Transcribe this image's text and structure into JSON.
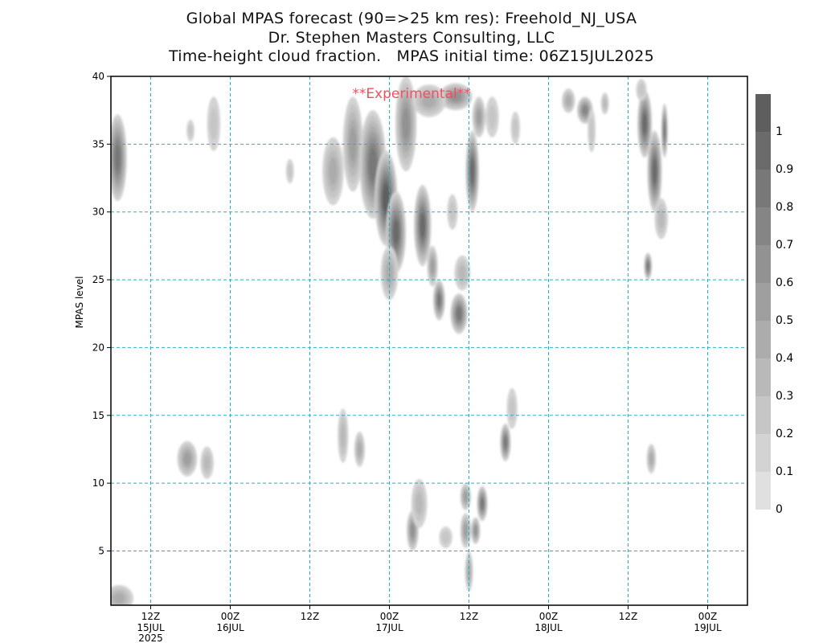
{
  "titles": [
    "Global MPAS forecast (90=>25 km res): Freehold_NJ_USA",
    "Dr. Stephen Masters Consulting, LLC",
    "Time-height cloud fraction.   MPAS initial time: 06Z15JUL2025"
  ],
  "annotation": "**Experimental**",
  "colors": {
    "grid": "#20b2c8",
    "annotation": "#f05060",
    "frame": "#000000"
  },
  "chart_data": {
    "type": "heatmap",
    "ylabel": "MPAS level",
    "ylim": [
      1,
      40
    ],
    "y_ticks": [
      5,
      10,
      15,
      20,
      25,
      30,
      35,
      40
    ],
    "xlim_hours_from_init": [
      0,
      96
    ],
    "x_ticks": [
      {
        "label": "12Z",
        "sub": [
          "15JUL",
          "2025"
        ]
      },
      {
        "label": "00Z",
        "sub": [
          "16JUL"
        ]
      },
      {
        "label": "12Z",
        "sub": []
      },
      {
        "label": "00Z",
        "sub": [
          "17JUL"
        ]
      },
      {
        "label": "12Z",
        "sub": []
      },
      {
        "label": "00Z",
        "sub": [
          "18JUL"
        ]
      },
      {
        "label": "12Z",
        "sub": []
      },
      {
        "label": "00Z",
        "sub": [
          "19JUL"
        ]
      }
    ],
    "x_tick_hours": [
      6,
      18,
      30,
      42,
      54,
      66,
      78,
      90
    ],
    "colorbar": {
      "labels": [
        "0",
        "0.1",
        "0.2",
        "0.3",
        "0.4",
        "0.5",
        "0.6",
        "0.7",
        "0.8",
        "0.9",
        "1"
      ],
      "colors": [
        "#e0e0e0",
        "#d3d3d3",
        "#c6c6c6",
        "#b9b9b9",
        "#acacac",
        "#9f9f9f",
        "#929292",
        "#858585",
        "#787878",
        "#6b6b6b",
        "#5e5e5e"
      ]
    },
    "cloud_blobs": [
      {
        "t": 1.0,
        "z": 34.0,
        "dt": 1.4,
        "dz": 3.2,
        "v": 0.75
      },
      {
        "t": 1.2,
        "z": 1.5,
        "dt": 2.2,
        "dz": 1.0,
        "v": 0.35
      },
      {
        "t": 12.0,
        "z": 36.0,
        "dt": 0.6,
        "dz": 0.8,
        "v": 0.15
      },
      {
        "t": 15.5,
        "z": 36.5,
        "dt": 1.0,
        "dz": 2.0,
        "v": 0.15
      },
      {
        "t": 11.5,
        "z": 11.8,
        "dt": 1.5,
        "dz": 1.3,
        "v": 0.5
      },
      {
        "t": 14.5,
        "z": 11.5,
        "dt": 1.0,
        "dz": 1.2,
        "v": 0.3
      },
      {
        "t": 27.0,
        "z": 33.0,
        "dt": 0.6,
        "dz": 0.9,
        "v": 0.15
      },
      {
        "t": 33.5,
        "z": 33.0,
        "dt": 1.6,
        "dz": 2.5,
        "v": 0.35
      },
      {
        "t": 36.5,
        "z": 35.0,
        "dt": 1.5,
        "dz": 3.5,
        "v": 0.5
      },
      {
        "t": 39.5,
        "z": 33.5,
        "dt": 2.0,
        "dz": 4.0,
        "v": 0.8
      },
      {
        "t": 41.5,
        "z": 31.0,
        "dt": 1.7,
        "dz": 3.5,
        "v": 0.95
      },
      {
        "t": 43.0,
        "z": 28.5,
        "dt": 1.5,
        "dz": 3.0,
        "v": 0.9
      },
      {
        "t": 42.0,
        "z": 25.5,
        "dt": 1.3,
        "dz": 2.0,
        "v": 0.4
      },
      {
        "t": 44.5,
        "z": 36.5,
        "dt": 1.6,
        "dz": 3.5,
        "v": 0.6
      },
      {
        "t": 47.0,
        "z": 29.0,
        "dt": 1.3,
        "dz": 3.0,
        "v": 0.85
      },
      {
        "t": 48.5,
        "z": 26.0,
        "dt": 0.8,
        "dz": 1.5,
        "v": 0.45
      },
      {
        "t": 49.5,
        "z": 23.5,
        "dt": 0.9,
        "dz": 1.5,
        "v": 0.75
      },
      {
        "t": 51.5,
        "z": 30.0,
        "dt": 0.8,
        "dz": 1.3,
        "v": 0.2
      },
      {
        "t": 52.5,
        "z": 22.5,
        "dt": 1.3,
        "dz": 1.5,
        "v": 0.8
      },
      {
        "t": 53.0,
        "z": 25.5,
        "dt": 1.2,
        "dz": 1.3,
        "v": 0.3
      },
      {
        "t": 52.0,
        "z": 38.5,
        "dt": 2.5,
        "dz": 1.0,
        "v": 0.55
      },
      {
        "t": 48.0,
        "z": 38.2,
        "dt": 2.5,
        "dz": 1.2,
        "v": 0.35
      },
      {
        "t": 54.5,
        "z": 33.0,
        "dt": 1.0,
        "dz": 3.0,
        "v": 0.85
      },
      {
        "t": 55.5,
        "z": 37.0,
        "dt": 1.0,
        "dz": 1.5,
        "v": 0.45
      },
      {
        "t": 57.5,
        "z": 37.0,
        "dt": 1.0,
        "dz": 1.5,
        "v": 0.2
      },
      {
        "t": 61.0,
        "z": 36.2,
        "dt": 0.7,
        "dz": 1.2,
        "v": 0.15
      },
      {
        "t": 35.0,
        "z": 13.5,
        "dt": 0.8,
        "dz": 2.0,
        "v": 0.25
      },
      {
        "t": 37.5,
        "z": 12.5,
        "dt": 0.8,
        "dz": 1.3,
        "v": 0.35
      },
      {
        "t": 45.5,
        "z": 6.5,
        "dt": 0.9,
        "dz": 1.5,
        "v": 0.55
      },
      {
        "t": 46.5,
        "z": 8.5,
        "dt": 1.2,
        "dz": 1.8,
        "v": 0.25
      },
      {
        "t": 50.5,
        "z": 6.0,
        "dt": 1.0,
        "dz": 0.8,
        "v": 0.2
      },
      {
        "t": 53.5,
        "z": 9.0,
        "dt": 0.8,
        "dz": 1.0,
        "v": 0.45
      },
      {
        "t": 53.5,
        "z": 6.5,
        "dt": 0.8,
        "dz": 1.3,
        "v": 0.5
      },
      {
        "t": 54.0,
        "z": 3.5,
        "dt": 0.6,
        "dz": 1.5,
        "v": 0.35
      },
      {
        "t": 55.0,
        "z": 6.5,
        "dt": 0.7,
        "dz": 1.0,
        "v": 0.6
      },
      {
        "t": 56.0,
        "z": 8.5,
        "dt": 0.8,
        "dz": 1.3,
        "v": 0.75
      },
      {
        "t": 59.5,
        "z": 13.0,
        "dt": 0.8,
        "dz": 1.4,
        "v": 0.8
      },
      {
        "t": 60.5,
        "z": 15.5,
        "dt": 0.8,
        "dz": 1.5,
        "v": 0.2
      },
      {
        "t": 69.0,
        "z": 38.2,
        "dt": 1.0,
        "dz": 0.9,
        "v": 0.4
      },
      {
        "t": 71.5,
        "z": 37.5,
        "dt": 1.2,
        "dz": 1.0,
        "v": 0.7
      },
      {
        "t": 72.5,
        "z": 36.0,
        "dt": 0.6,
        "dz": 1.6,
        "v": 0.2
      },
      {
        "t": 74.5,
        "z": 38.0,
        "dt": 0.6,
        "dz": 0.8,
        "v": 0.25
      },
      {
        "t": 80.5,
        "z": 36.5,
        "dt": 1.1,
        "dz": 2.5,
        "v": 0.85
      },
      {
        "t": 82.0,
        "z": 33.0,
        "dt": 1.1,
        "dz": 3.0,
        "v": 0.9
      },
      {
        "t": 83.5,
        "z": 36.0,
        "dt": 0.5,
        "dz": 2.0,
        "v": 0.75
      },
      {
        "t": 83.0,
        "z": 29.5,
        "dt": 1.0,
        "dz": 1.5,
        "v": 0.3
      },
      {
        "t": 80.0,
        "z": 39.0,
        "dt": 0.8,
        "dz": 0.8,
        "v": 0.15
      },
      {
        "t": 81.0,
        "z": 26.0,
        "dt": 0.6,
        "dz": 1.0,
        "v": 0.75
      },
      {
        "t": 81.5,
        "z": 11.8,
        "dt": 0.7,
        "dz": 1.1,
        "v": 0.35
      }
    ]
  }
}
